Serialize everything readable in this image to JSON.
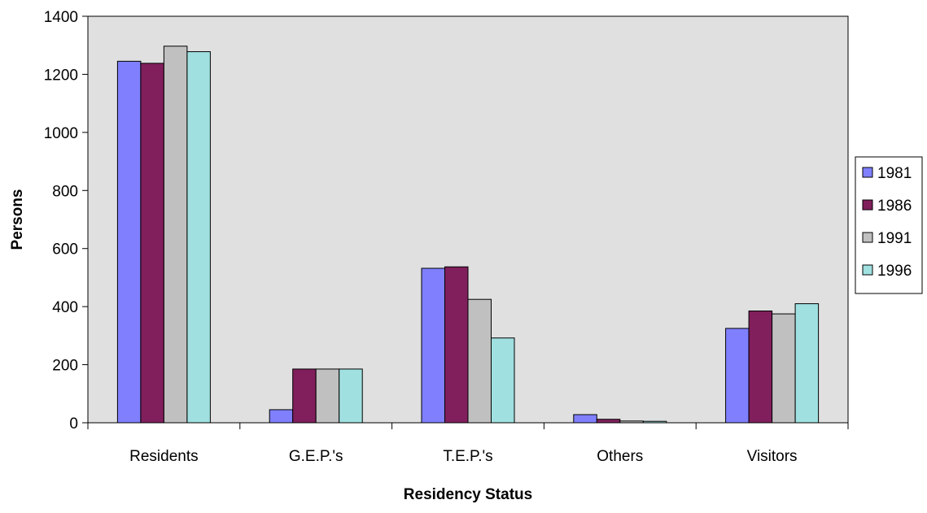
{
  "chart_data": {
    "type": "bar",
    "title": "",
    "xlabel": "Residency Status",
    "ylabel": "Persons",
    "ylim": [
      0,
      1400
    ],
    "yticks": [
      0,
      200,
      400,
      600,
      800,
      1000,
      1200,
      1400
    ],
    "categories": [
      "Residents",
      "G.E.P.'s",
      "T.E.P.'s",
      "Others",
      "Visitors"
    ],
    "series": [
      {
        "name": "1981",
        "color": "#8080ff",
        "values": [
          1245,
          45,
          532,
          28,
          325
        ]
      },
      {
        "name": "1986",
        "color": "#801f5c",
        "values": [
          1238,
          185,
          537,
          12,
          385
        ]
      },
      {
        "name": "1991",
        "color": "#c0c0c0",
        "values": [
          1297,
          185,
          425,
          6,
          375
        ]
      },
      {
        "name": "1996",
        "color": "#a0e0e0",
        "values": [
          1278,
          185,
          292,
          5,
          410
        ]
      }
    ],
    "plot_background": "#e0e0e0",
    "grid": false,
    "legend_position": "right"
  }
}
